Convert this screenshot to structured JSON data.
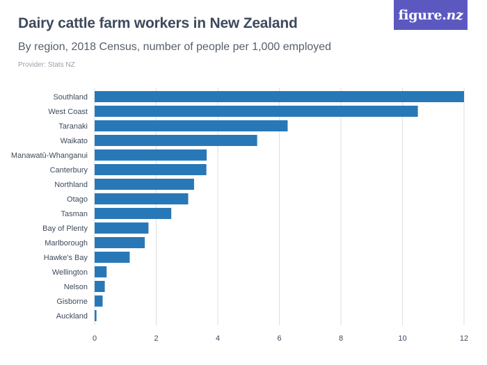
{
  "header": {
    "title": "Dairy cattle farm workers in New Zealand",
    "subtitle": "By region, 2018 Census, number of people per 1,000 employed",
    "provider": "Provider: Stats NZ"
  },
  "logo": {
    "text_main": "figure.",
    "text_suffix": "nz"
  },
  "colors": {
    "bar": "#2878b8",
    "grid": "#dddddd",
    "logo_bg": "#5b59c0",
    "text": "#3d4a5c"
  },
  "chart_data": {
    "type": "bar",
    "orientation": "horizontal",
    "title": "Dairy cattle farm workers in New Zealand",
    "subtitle": "By region, 2018 Census, number of people per 1,000 employed",
    "xlabel": "",
    "ylabel": "",
    "xlim": [
      0,
      12
    ],
    "xticks": [
      "0",
      "2",
      "4",
      "6",
      "8",
      "10",
      "12"
    ],
    "grid": true,
    "categories": [
      "Southland",
      "West Coast",
      "Taranaki",
      "Waikato",
      "Manawatū-Whanganui",
      "Canterbury",
      "Northland",
      "Otago",
      "Tasman",
      "Bay of Plenty",
      "Marlborough",
      "Hawke's Bay",
      "Wellington",
      "Nelson",
      "Gisborne",
      "Auckland"
    ],
    "values": [
      12.0,
      10.5,
      6.27,
      5.28,
      3.64,
      3.63,
      3.23,
      3.04,
      2.49,
      1.75,
      1.63,
      1.14,
      0.39,
      0.33,
      0.26,
      0.06
    ]
  }
}
